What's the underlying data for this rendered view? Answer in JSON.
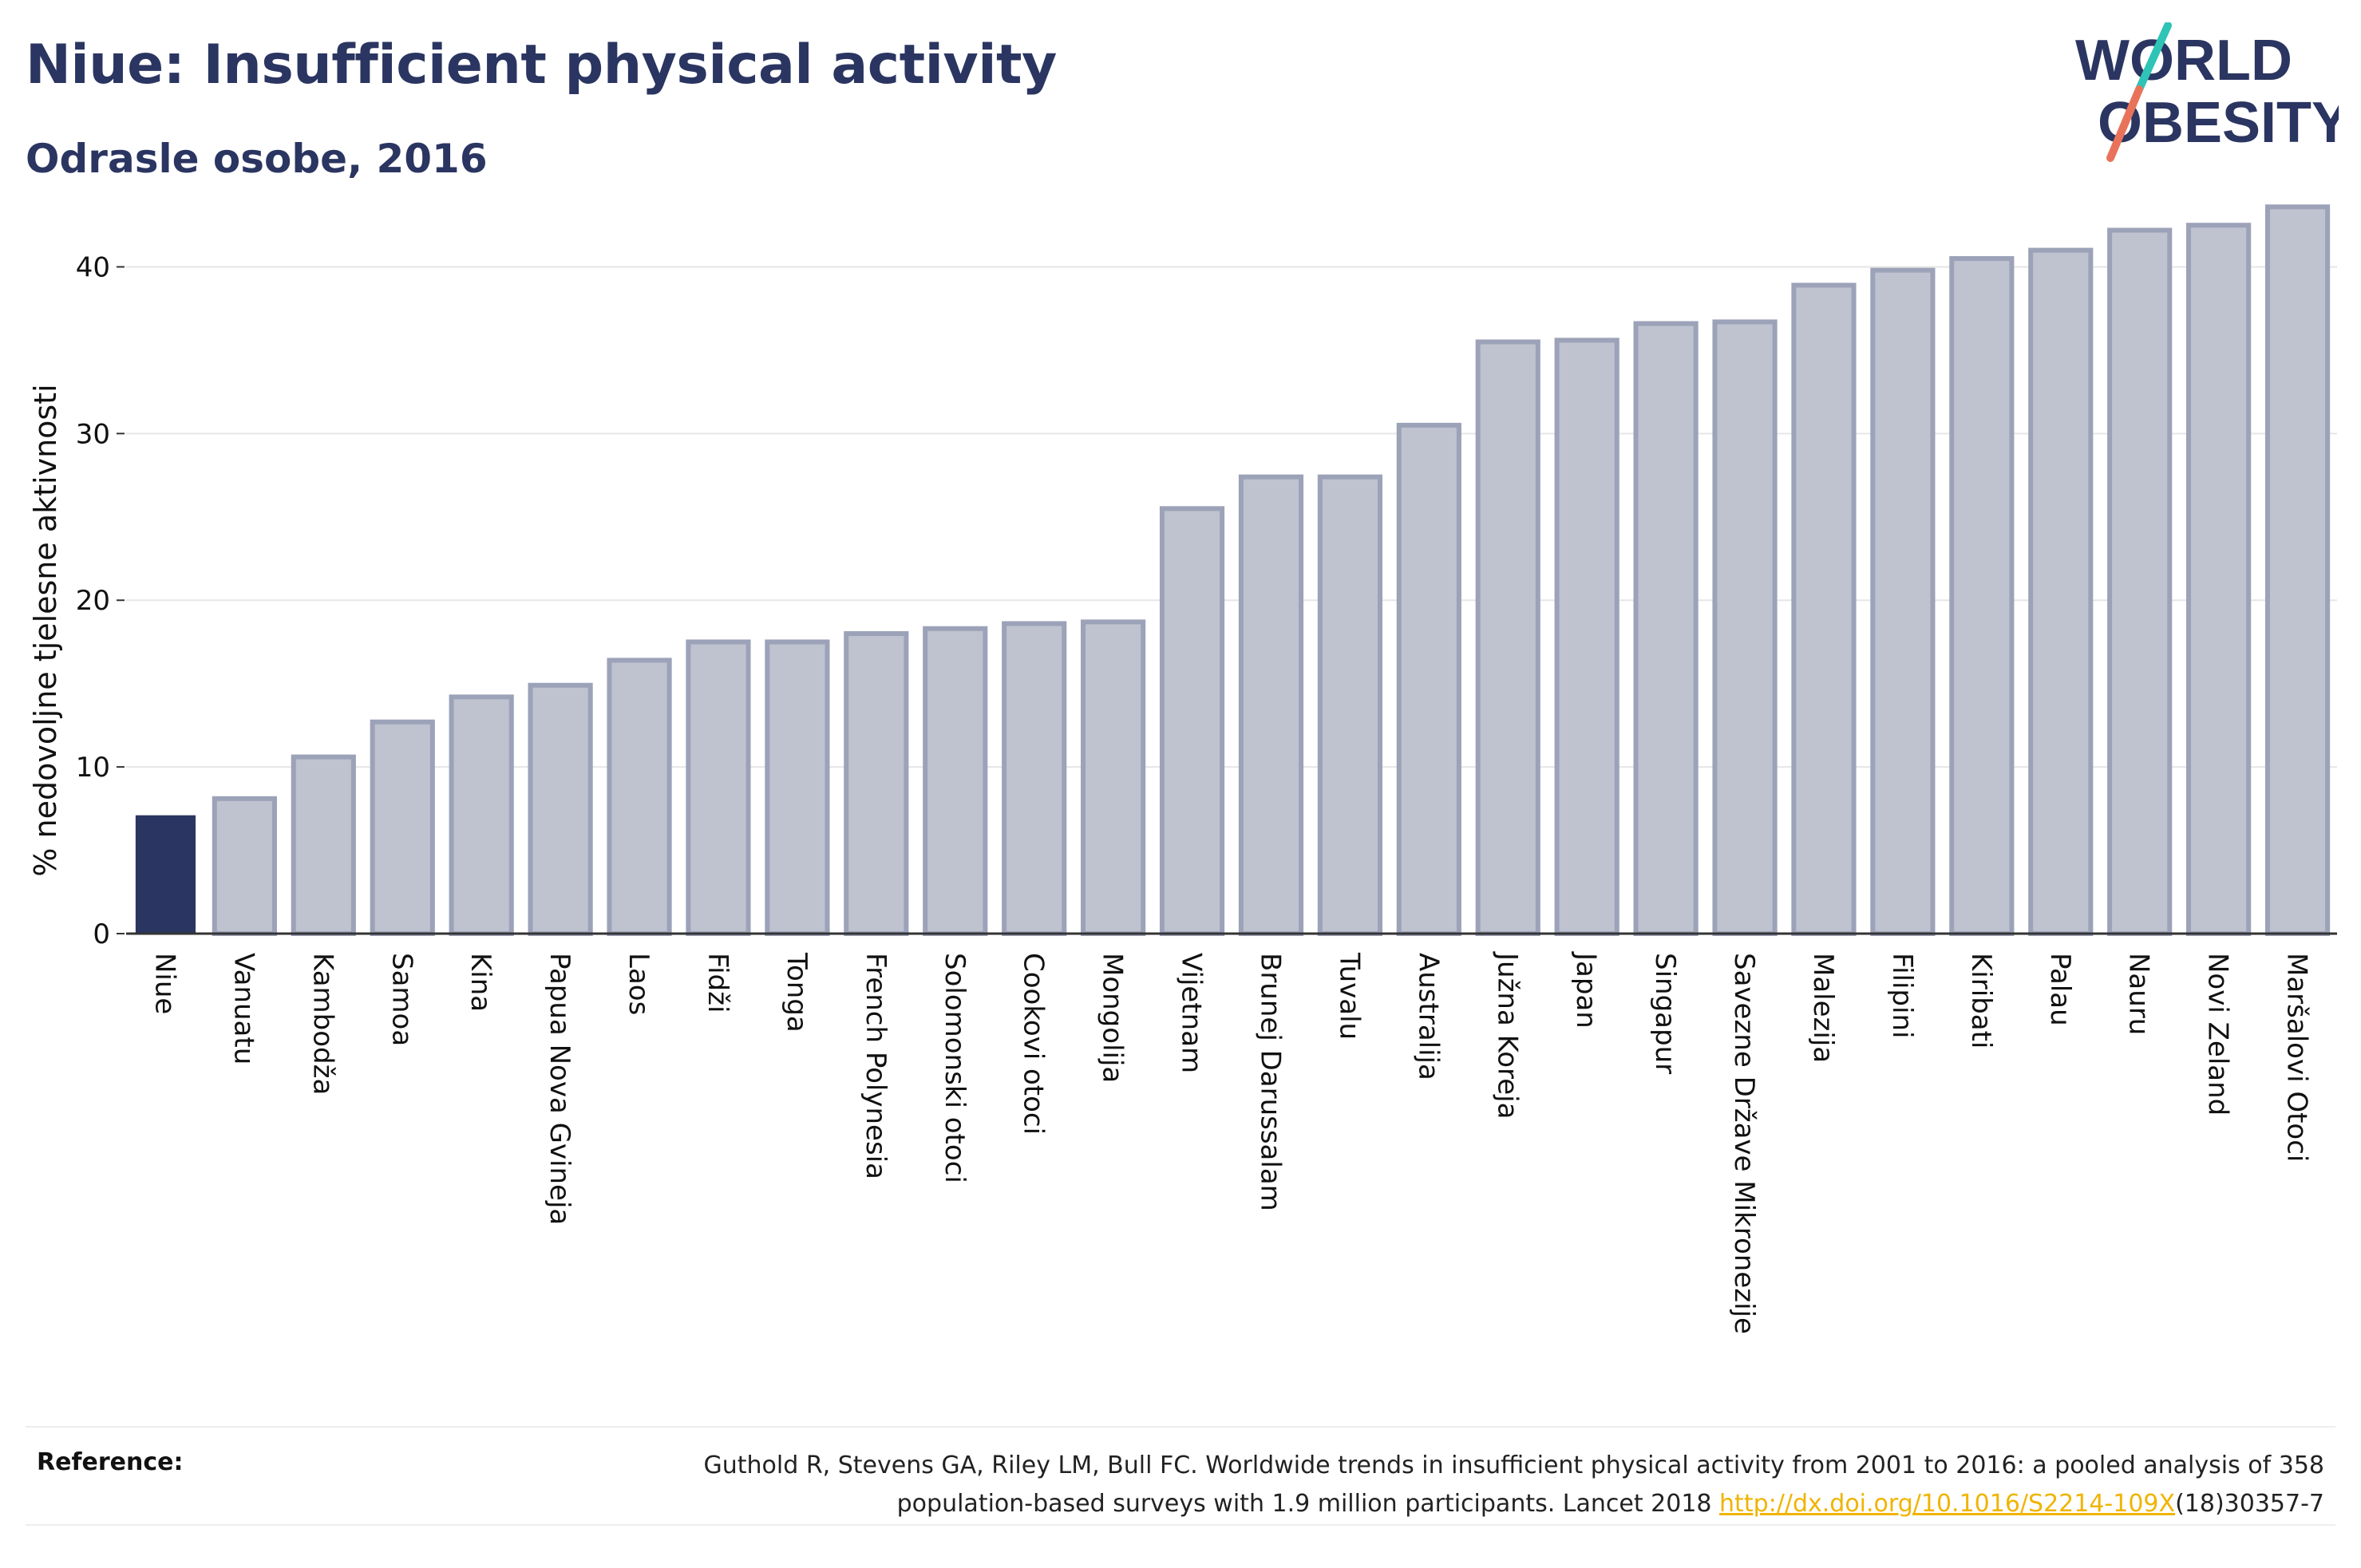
{
  "header": {
    "title": "Niue: Insufficient physical activity",
    "subtitle": "Odrasle osobe, 2016"
  },
  "logo": {
    "line1": "WORLD",
    "line2": "OBESITY"
  },
  "colors": {
    "highlight_bar": "#2b3561",
    "other_bar_fill": "#bfc3cf",
    "other_bar_stroke": "#9ca2b8",
    "title": "#2b3561",
    "logo_slash_teal": "#2ec4b6",
    "logo_slash_coral": "#e8735a",
    "link": "#f0b400"
  },
  "chart_data": {
    "type": "bar",
    "title": "Niue: Insufficient physical activity",
    "subtitle": "Odrasle osobe, 2016",
    "xlabel": "",
    "ylabel": "% nedovoljne tjelesne aktivnosti",
    "ylim": [
      0,
      45
    ],
    "yticks": [
      0,
      10,
      20,
      30,
      40
    ],
    "grid": "horizontal",
    "highlight": "Niue",
    "categories": [
      "Niue",
      "Vanuatu",
      "Kambodža",
      "Samoa",
      "Kina",
      "Papua Nova Gvineja",
      "Laos",
      "Fidži",
      "Tonga",
      "French Polynesia",
      "Solomonski otoci",
      "Cookovi otoci",
      "Mongolija",
      "Vijetnam",
      "Brunej Darussalam",
      "Tuvalu",
      "Australija",
      "Južna Koreja",
      "Japan",
      "Singapur",
      "Savezne Države Mikronezije",
      "Malezija",
      "Filipini",
      "Kiribati",
      "Palau",
      "Nauru",
      "Novi Zeland",
      "Maršalovi Otoci"
    ],
    "values": [
      7.1,
      8.1,
      10.6,
      12.7,
      14.2,
      14.9,
      16.4,
      17.5,
      17.5,
      18.0,
      18.3,
      18.6,
      18.7,
      25.5,
      27.4,
      27.4,
      30.5,
      35.5,
      35.6,
      36.6,
      36.7,
      38.9,
      39.8,
      40.5,
      41.0,
      42.2,
      42.5,
      43.6
    ]
  },
  "reference": {
    "label": "Reference:",
    "text_line1": "Guthold R, Stevens GA, Riley LM, Bull FC. Worldwide trends in insufficient physical activity from 2001 to 2016: a pooled analysis of 358",
    "text_line2_pre": "population-based surveys with 1.9 million participants. Lancet 2018 ",
    "link_text": "http://dx.doi.org/10.1016/S2214-109X",
    "text_line2_post": "(18)30357-7"
  }
}
